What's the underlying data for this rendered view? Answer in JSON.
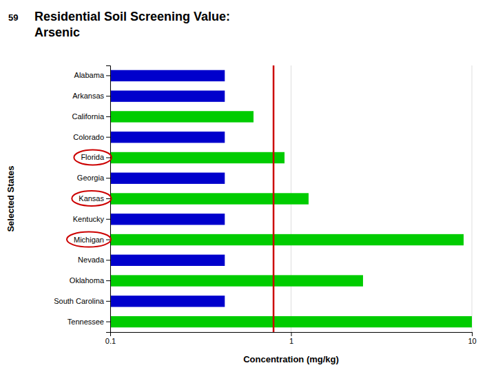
{
  "chart_data": {
    "type": "bar",
    "orientation": "horizontal",
    "title": "Residential Soil Screening Value:\nArsenic",
    "annotations": [
      "59"
    ],
    "x_label": "Concentration (mg/kg)",
    "y_label": "Selected States",
    "categories": [
      "Tennessee",
      "South Carolina",
      "Oklahoma",
      "Nevada",
      "Michigan",
      "Kentucky",
      "Kansas",
      "Georgia",
      "Florida",
      "Colorado",
      "California",
      "Arkansas",
      "Alabama"
    ],
    "values": [
      10.0,
      0.43,
      2.5,
      0.43,
      9.0,
      0.43,
      1.25,
      0.43,
      0.92,
      0.43,
      0.62,
      0.43,
      0.43
    ],
    "colors": [
      "#00cc00",
      "#0000cc",
      "#00cc00",
      "#0000cc",
      "#00cc00",
      "#0000cc",
      "#00cc00",
      "#0000cc",
      "#00cc00",
      "#0000cc",
      "#00cc00",
      "#0000cc",
      "#0000cc"
    ],
    "log": "x",
    "xlim": [
      0.1,
      10
    ],
    "xticks": [
      0.1,
      1,
      10
    ],
    "grid": true,
    "reference_lines": [
      {
        "value": 0.8,
        "color": "#cc0000"
      }
    ],
    "circled_categories": [
      "Florida",
      "Kansas",
      "Michigan"
    ]
  }
}
